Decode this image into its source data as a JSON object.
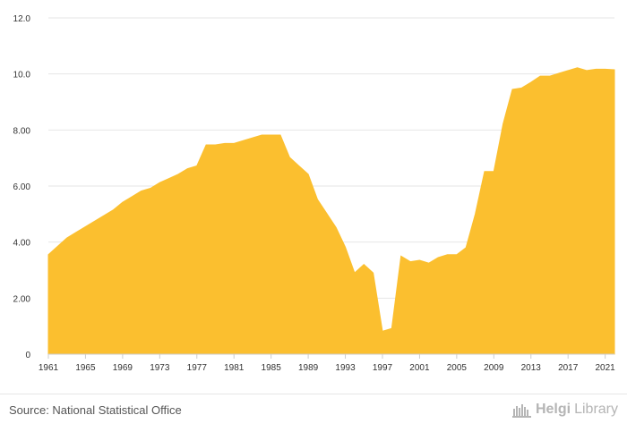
{
  "chart_data": {
    "type": "area",
    "title": "",
    "xlabel": "",
    "ylabel": "",
    "color": "#fbbf2f",
    "grid": true,
    "xlim": [
      1961,
      2022
    ],
    "ylim": [
      0,
      12
    ],
    "y_ticks": [
      "0",
      "2.00",
      "4.00",
      "6.00",
      "8.00",
      "10.0",
      "12.0"
    ],
    "x_ticks": [
      "1961",
      "1965",
      "1969",
      "1973",
      "1977",
      "1981",
      "1985",
      "1989",
      "1993",
      "1997",
      "2001",
      "2005",
      "2009",
      "2013",
      "2017",
      "2021"
    ],
    "x": [
      1961,
      1962,
      1963,
      1964,
      1965,
      1966,
      1967,
      1968,
      1969,
      1970,
      1971,
      1972,
      1973,
      1974,
      1975,
      1976,
      1977,
      1978,
      1979,
      1980,
      1981,
      1982,
      1983,
      1984,
      1985,
      1986,
      1987,
      1988,
      1989,
      1990,
      1991,
      1992,
      1993,
      1994,
      1995,
      1996,
      1997,
      1998,
      1999,
      2000,
      2001,
      2002,
      2003,
      2004,
      2005,
      2006,
      2007,
      2008,
      2009,
      2010,
      2011,
      2012,
      2013,
      2014,
      2015,
      2016,
      2017,
      2018,
      2019,
      2020,
      2021,
      2022
    ],
    "values": [
      3.55,
      3.85,
      4.15,
      4.35,
      4.55,
      4.75,
      4.95,
      5.15,
      5.42,
      5.62,
      5.82,
      5.92,
      6.12,
      6.27,
      6.42,
      6.62,
      6.72,
      7.47,
      7.47,
      7.52,
      7.52,
      7.62,
      7.72,
      7.82,
      7.82,
      7.82,
      7.02,
      6.72,
      6.42,
      5.52,
      5.02,
      4.52,
      3.82,
      2.9,
      3.2,
      2.9,
      0.82,
      0.92,
      3.5,
      3.3,
      3.35,
      3.25,
      3.45,
      3.55,
      3.55,
      3.8,
      5.0,
      6.52,
      6.52,
      8.22,
      9.45,
      9.5,
      9.7,
      9.92,
      9.92,
      10.02,
      10.12,
      10.22,
      10.12,
      10.17,
      10.17,
      10.15
    ]
  },
  "footer": {
    "source": "Source: National Statistical Office",
    "brand_primary": "Helgi",
    "brand_secondary": "Library"
  }
}
